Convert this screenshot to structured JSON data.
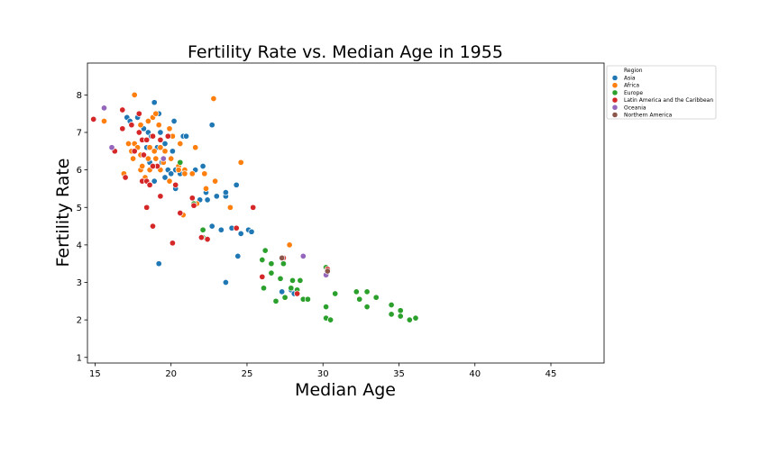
{
  "chart_data": {
    "type": "scatter",
    "title": "Fertility Rate vs. Median Age in 1955",
    "xlabel": "Median Age",
    "ylabel": "Fertility Rate",
    "xlim": [
      14.5,
      48.5
    ],
    "ylim": [
      0.85,
      8.85
    ],
    "xticks": [
      "15",
      "20",
      "25",
      "30",
      "35",
      "40",
      "45"
    ],
    "yticks": [
      "1",
      "2",
      "3",
      "4",
      "5",
      "6",
      "7",
      "8"
    ],
    "grid": false,
    "legend": {
      "title": "Region",
      "placement": "outside right"
    },
    "series": [
      {
        "name": "Asia",
        "color": "#1f77b4",
        "points": [
          [
            17.1,
            7.4
          ],
          [
            17.3,
            7.3
          ],
          [
            17.8,
            7.4
          ],
          [
            18.2,
            7.1
          ],
          [
            18.9,
            7.8
          ],
          [
            19.2,
            7.5
          ],
          [
            18.5,
            7.0
          ],
          [
            19.3,
            7.0
          ],
          [
            18.7,
            6.9
          ],
          [
            19.6,
            6.7
          ],
          [
            20.2,
            7.3
          ],
          [
            20.8,
            6.9
          ],
          [
            21.0,
            6.9
          ],
          [
            18.4,
            6.6
          ],
          [
            19.1,
            6.6
          ],
          [
            20.1,
            6.5
          ],
          [
            19.0,
            6.3
          ],
          [
            18.6,
            6.2
          ],
          [
            19.4,
            6.2
          ],
          [
            19.8,
            6.0
          ],
          [
            20.0,
            5.9
          ],
          [
            20.6,
            5.9
          ],
          [
            20.3,
            6.0
          ],
          [
            21.6,
            6.0
          ],
          [
            22.1,
            6.1
          ],
          [
            19.6,
            5.8
          ],
          [
            20.3,
            5.5
          ],
          [
            21.9,
            5.2
          ],
          [
            22.3,
            5.4
          ],
          [
            23.0,
            5.3
          ],
          [
            23.6,
            5.3
          ],
          [
            22.4,
            5.2
          ],
          [
            23.6,
            5.4
          ],
          [
            24.3,
            5.6
          ],
          [
            22.7,
            7.2
          ],
          [
            18.9,
            5.7
          ],
          [
            19.2,
            3.5
          ],
          [
            22.7,
            4.5
          ],
          [
            23.3,
            4.4
          ],
          [
            24.0,
            4.45
          ],
          [
            24.6,
            4.3
          ],
          [
            25.1,
            4.4
          ],
          [
            25.3,
            4.35
          ],
          [
            24.4,
            3.7
          ],
          [
            23.6,
            3.0
          ],
          [
            27.3,
            2.75
          ],
          [
            27.9,
            2.8
          ],
          [
            28.3,
            2.75
          ],
          [
            28.1,
            2.7
          ]
        ]
      },
      {
        "name": "Africa",
        "color": "#ff7f0e",
        "points": [
          [
            15.6,
            7.3
          ],
          [
            17.6,
            8.0
          ],
          [
            22.8,
            7.9
          ],
          [
            17.4,
            7.2
          ],
          [
            18.0,
            7.2
          ],
          [
            18.5,
            7.3
          ],
          [
            18.8,
            7.4
          ],
          [
            19.0,
            7.5
          ],
          [
            19.2,
            7.2
          ],
          [
            19.9,
            7.1
          ],
          [
            17.2,
            6.7
          ],
          [
            17.6,
            6.7
          ],
          [
            17.8,
            6.6
          ],
          [
            18.2,
            6.8
          ],
          [
            18.6,
            6.6
          ],
          [
            18.9,
            6.5
          ],
          [
            19.3,
            6.6
          ],
          [
            19.6,
            6.5
          ],
          [
            20.1,
            6.9
          ],
          [
            20.6,
            6.7
          ],
          [
            21.6,
            6.6
          ],
          [
            17.4,
            6.5
          ],
          [
            17.5,
            6.3
          ],
          [
            18.0,
            6.4
          ],
          [
            18.5,
            6.3
          ],
          [
            19.0,
            6.3
          ],
          [
            19.5,
            6.2
          ],
          [
            20.0,
            6.3
          ],
          [
            20.5,
            6.1
          ],
          [
            20.9,
            6.0
          ],
          [
            18.0,
            6.0
          ],
          [
            18.6,
            6.0
          ],
          [
            18.3,
            5.8
          ],
          [
            19.9,
            5.7
          ],
          [
            20.5,
            6.0
          ],
          [
            21.4,
            5.9
          ],
          [
            22.2,
            5.9
          ],
          [
            22.9,
            5.7
          ],
          [
            24.6,
            6.2
          ],
          [
            20.9,
            5.9
          ],
          [
            22.3,
            5.5
          ],
          [
            23.9,
            5.0
          ],
          [
            27.8,
            4.0
          ],
          [
            20.8,
            4.8
          ],
          [
            21.7,
            5.1
          ],
          [
            19.3,
            6.0
          ],
          [
            18.1,
            6.1
          ],
          [
            16.9,
            5.9
          ]
        ]
      },
      {
        "name": "Europe",
        "color": "#2ca02c",
        "points": [
          [
            20.6,
            6.2
          ],
          [
            21.5,
            5.1
          ],
          [
            22.1,
            4.2
          ],
          [
            22.1,
            4.4
          ],
          [
            26.0,
            3.6
          ],
          [
            26.2,
            3.85
          ],
          [
            26.6,
            3.5
          ],
          [
            27.4,
            3.5
          ],
          [
            26.1,
            2.85
          ],
          [
            26.6,
            3.25
          ],
          [
            27.2,
            3.1
          ],
          [
            28.0,
            3.05
          ],
          [
            28.5,
            3.05
          ],
          [
            27.5,
            2.6
          ],
          [
            26.9,
            2.5
          ],
          [
            27.9,
            2.85
          ],
          [
            28.3,
            2.8
          ],
          [
            28.7,
            2.55
          ],
          [
            29.0,
            2.55
          ],
          [
            30.2,
            3.4
          ],
          [
            30.8,
            2.7
          ],
          [
            30.2,
            2.35
          ],
          [
            30.2,
            2.05
          ],
          [
            30.5,
            2.0
          ],
          [
            32.2,
            2.75
          ],
          [
            32.4,
            2.55
          ],
          [
            32.9,
            2.75
          ],
          [
            32.9,
            2.35
          ],
          [
            33.5,
            2.6
          ],
          [
            34.5,
            2.4
          ],
          [
            34.5,
            2.15
          ],
          [
            35.1,
            2.25
          ],
          [
            35.1,
            2.1
          ],
          [
            35.7,
            2.0
          ],
          [
            36.1,
            2.05
          ]
        ]
      },
      {
        "name": "Latin America and the Caribbean",
        "color": "#d62728",
        "points": [
          [
            14.9,
            7.35
          ],
          [
            16.8,
            7.6
          ],
          [
            17.4,
            7.2
          ],
          [
            17.9,
            7.5
          ],
          [
            17.9,
            7.0
          ],
          [
            18.1,
            6.8
          ],
          [
            18.4,
            6.8
          ],
          [
            18.8,
            6.9
          ],
          [
            19.3,
            6.8
          ],
          [
            19.8,
            6.9
          ],
          [
            16.3,
            6.5
          ],
          [
            17.6,
            6.5
          ],
          [
            18.2,
            6.4
          ],
          [
            19.1,
            6.1
          ],
          [
            18.8,
            6.1
          ],
          [
            17.0,
            5.8
          ],
          [
            18.1,
            5.7
          ],
          [
            18.4,
            5.7
          ],
          [
            18.6,
            5.6
          ],
          [
            19.3,
            5.3
          ],
          [
            18.4,
            5.0
          ],
          [
            20.3,
            5.6
          ],
          [
            21.4,
            5.25
          ],
          [
            20.6,
            4.85
          ],
          [
            21.5,
            5.05
          ],
          [
            18.8,
            4.5
          ],
          [
            20.1,
            4.05
          ],
          [
            22.0,
            4.2
          ],
          [
            22.4,
            4.15
          ],
          [
            24.3,
            4.45
          ],
          [
            25.4,
            5.0
          ],
          [
            26.0,
            3.15
          ],
          [
            27.4,
            3.65
          ],
          [
            28.3,
            2.7
          ],
          [
            30.3,
            3.35
          ],
          [
            16.8,
            7.1
          ]
        ]
      },
      {
        "name": "Oceania",
        "color": "#9467bd",
        "points": [
          [
            15.6,
            7.65
          ],
          [
            16.1,
            6.6
          ],
          [
            19.5,
            6.3
          ],
          [
            28.7,
            3.7
          ],
          [
            30.2,
            3.2
          ]
        ]
      },
      {
        "name": "Northern America",
        "color": "#8c564b",
        "points": [
          [
            27.3,
            3.65
          ],
          [
            30.3,
            3.3
          ]
        ]
      }
    ]
  }
}
